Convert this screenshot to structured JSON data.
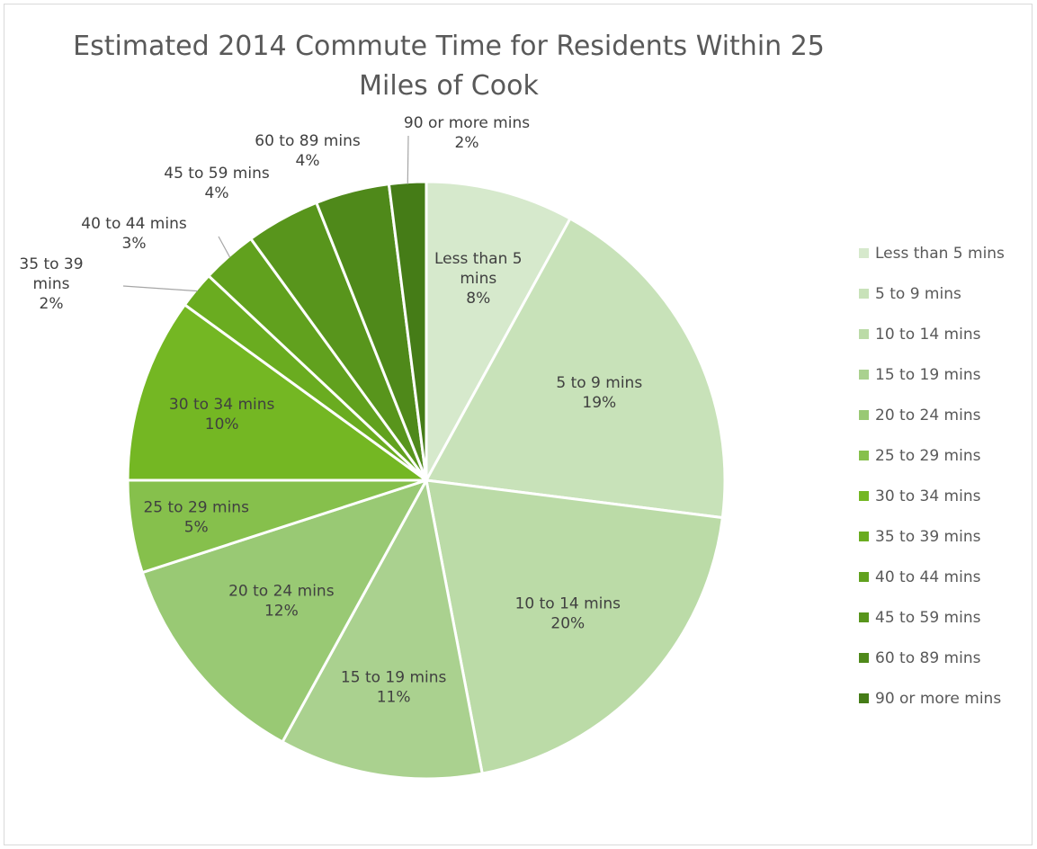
{
  "chart_data": {
    "type": "pie",
    "title": "Estimated 2014 Commute Time for Residents Within 25 Miles of Cook",
    "title_lines": [
      "Estimated 2014 Commute Time for Residents Within 25",
      "Miles of Cook"
    ],
    "legend_position": "right",
    "slices": [
      {
        "label": "Less than 5 mins",
        "value": 8,
        "percent_label": "8%",
        "color": "#d6e9cc"
      },
      {
        "label": "5 to 9 mins",
        "value": 19,
        "percent_label": "19%",
        "color": "#c8e2b9"
      },
      {
        "label": "10 to 14 mins",
        "value": 20,
        "percent_label": "20%",
        "color": "#bbdba7"
      },
      {
        "label": "15 to 19 mins",
        "value": 11,
        "percent_label": "11%",
        "color": "#aad18f"
      },
      {
        "label": "20 to 24 mins",
        "value": 12,
        "percent_label": "12%",
        "color": "#99c974"
      },
      {
        "label": "25 to 29 mins",
        "value": 5,
        "percent_label": "5%",
        "color": "#86c04c"
      },
      {
        "label": "30 to 34 mins",
        "value": 10,
        "percent_label": "10%",
        "color": "#74b723"
      },
      {
        "label": "35 to 39 mins",
        "value": 2,
        "percent_label": "2%",
        "color": "#6aac20"
      },
      {
        "label": "40 to 44 mins",
        "value": 3,
        "percent_label": "3%",
        "color": "#61a11e"
      },
      {
        "label": "45 to 59 mins",
        "value": 4,
        "percent_label": "4%",
        "color": "#58951c"
      },
      {
        "label": "60 to 89 mins",
        "value": 4,
        "percent_label": "4%",
        "color": "#4f891a"
      },
      {
        "label": "90 or more mins",
        "value": 2,
        "percent_label": "2%",
        "color": "#457c17"
      }
    ]
  }
}
